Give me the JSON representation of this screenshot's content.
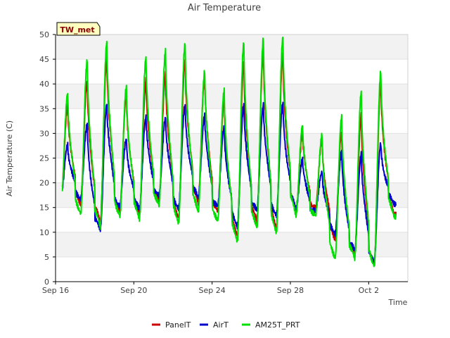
{
  "chart_data": {
    "type": "line",
    "title": "Air Temperature",
    "xlabel": "Time",
    "ylabel": "Air Temperature (C)",
    "station_label": "TW_met",
    "xlim": [
      0,
      18
    ],
    "ylim": [
      0,
      50
    ],
    "yticks": [
      0,
      5,
      10,
      15,
      20,
      25,
      30,
      35,
      40,
      45,
      50
    ],
    "xticks": [
      {
        "day": 0,
        "label": "Sep 16"
      },
      {
        "day": 4,
        "label": "Sep 20"
      },
      {
        "day": 8,
        "label": "Sep 24"
      },
      {
        "day": 12,
        "label": "Sep 28"
      },
      {
        "day": 16,
        "label": "Oct 2"
      }
    ],
    "daily": {
      "days": [
        0.5,
        1.5,
        2.5,
        3.5,
        4.5,
        5.5,
        6.5,
        7.5,
        8.5,
        9.5,
        10.5,
        11.5,
        12.5,
        13.5,
        14.5,
        15.5,
        16.5,
        17.5
      ],
      "min_hours": [
        7,
        7,
        7,
        7,
        7,
        7,
        7,
        7,
        7,
        7,
        7,
        7,
        7,
        7,
        7,
        7,
        7,
        7
      ]
    },
    "series": [
      {
        "name": "PanelT",
        "color": "#cc0000",
        "daily_max": [
          36,
          40.5,
          45.5,
          38,
          40.5,
          42.5,
          44.5,
          41.5,
          37,
          44,
          47,
          46,
          30,
          29,
          30,
          34,
          40,
          0
        ],
        "daily_min": [
          16,
          16,
          12,
          14,
          14,
          16,
          13,
          16,
          14,
          9.5,
          12,
          11,
          14,
          14.5,
          9,
          5,
          3.5,
          14
        ]
      },
      {
        "name": "AirT",
        "color": "#0000cc",
        "daily_max": [
          28,
          31.5,
          36,
          29,
          33,
          33.5,
          35.5,
          33.5,
          31.5,
          35.5,
          36,
          36,
          24.5,
          22.5,
          26,
          26,
          28,
          0
        ],
        "daily_min": [
          17,
          17,
          10.5,
          15,
          15,
          17,
          15,
          17,
          15,
          11.5,
          14,
          13.5,
          15,
          14,
          10,
          6,
          4,
          16
        ]
      },
      {
        "name": "AM25T_PRT",
        "color": "#00e000",
        "daily_max": [
          38.5,
          44.5,
          48.5,
          39.5,
          45,
          47,
          48,
          42.5,
          39,
          48,
          49.5,
          49.5,
          31.5,
          30,
          33,
          38.5,
          42.5,
          0
        ],
        "daily_min": [
          15,
          14,
          11,
          13,
          13,
          15,
          12,
          14,
          12,
          8.5,
          10.5,
          10,
          13.5,
          13,
          5,
          4.5,
          3,
          13.5
        ]
      }
    ],
    "legend_position": "bottom-center",
    "grid": "horizontal bands"
  }
}
